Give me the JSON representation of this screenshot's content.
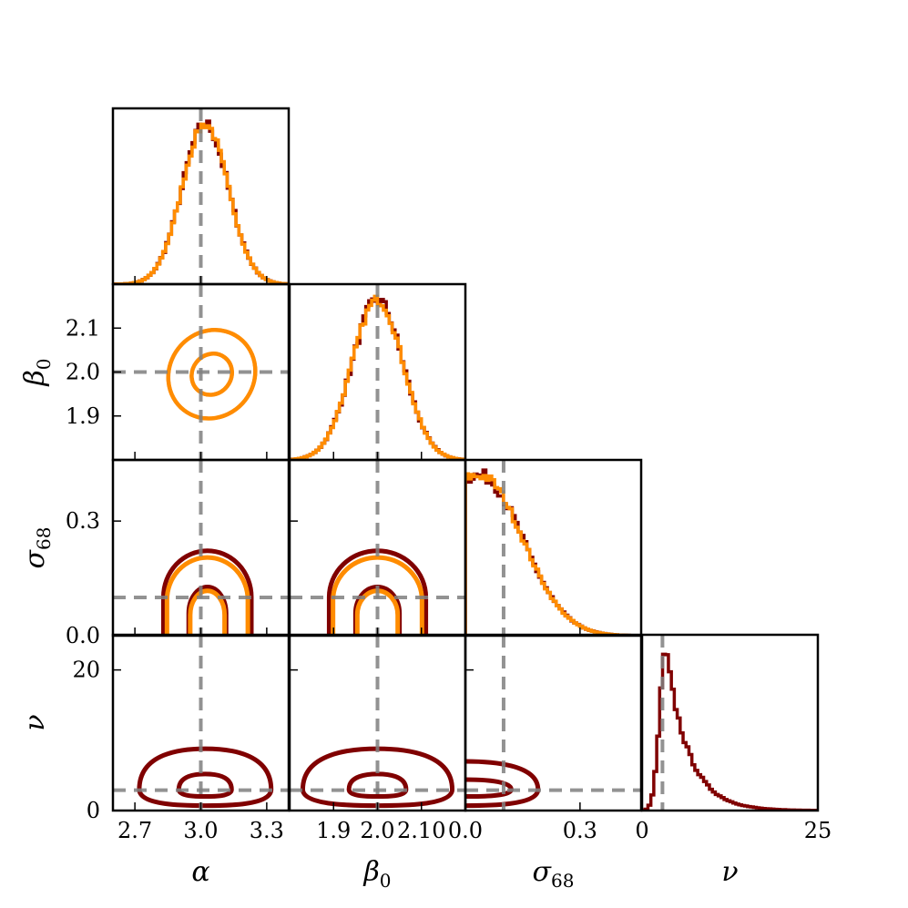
{
  "chart_data": {
    "type": "corner",
    "parameters": [
      {
        "key": "alpha",
        "symbol": "α",
        "sub": "",
        "truth": 3.0,
        "range": [
          2.6,
          3.4
        ],
        "ticks": [
          2.7,
          3.0,
          3.3
        ],
        "tick_labels": [
          "2.7",
          "3.0",
          "3.3"
        ]
      },
      {
        "key": "beta0",
        "symbol": "β",
        "sub": "0",
        "truth": 2.0,
        "range": [
          1.8,
          2.2
        ],
        "ticks": [
          1.9,
          2.0,
          2.1
        ],
        "tick_labels": [
          "1.9",
          "2.0",
          "2.1"
        ],
        "x_tick_labels": [
          "1.9",
          "2.0",
          "2.10"
        ]
      },
      {
        "key": "sigma68",
        "symbol": "σ",
        "sub": "68",
        "truth": 0.1,
        "range": [
          0.0,
          0.46
        ],
        "ticks": [
          0.0,
          0.3
        ],
        "tick_labels": [
          "0.0",
          "0.3"
        ]
      },
      {
        "key": "nu",
        "symbol": "ν",
        "sub": "",
        "truth": 2.9,
        "range": [
          0,
          25
        ],
        "ticks": [
          0,
          20
        ],
        "tick_labels": [
          "0",
          "20"
        ],
        "x_ticks": [
          0,
          25
        ],
        "x_tick_labels": [
          "0",
          "25"
        ]
      }
    ],
    "series": [
      {
        "color": "#800000"
      },
      {
        "color": "#FF8C00"
      }
    ],
    "truth_line_color": "#808080",
    "marginals": {
      "alpha": {
        "type": "gaussian",
        "mean": 3.02,
        "sd": 0.105
      },
      "beta0": {
        "type": "gaussian",
        "mean": 2.0,
        "sd": 0.058
      },
      "sigma68": {
        "type": "halfnormal",
        "peak": 0.04,
        "sd_left": 0.25,
        "sd_right": 0.11
      },
      "nu": {
        "type": "skewed",
        "mode": 3.4,
        "sd_left": 0.9,
        "scale_right": 3.2
      }
    },
    "contours": {
      "alpha_beta0": {
        "center": [
          3.05,
          1.995
        ],
        "angle_deg": -38,
        "outer": {
          "a": 0.26,
          "b": 0.045
        },
        "inner": {
          "a": 0.12,
          "b": 0.021
        }
      },
      "alpha_sigma68": {
        "center": [
          3.03,
          0.0
        ],
        "outer": {
          "rx": 0.2,
          "ry": 0.22
        },
        "inner": {
          "rx": 0.085,
          "ry": 0.125
        }
      },
      "beta0_sigma68": {
        "center": [
          2.0,
          0.0
        ],
        "outer": {
          "rx": 0.11,
          "ry": 0.22
        },
        "inner": {
          "rx": 0.05,
          "ry": 0.125
        }
      },
      "alpha_nu": {
        "center": [
          3.02,
          3.0
        ],
        "outer": {
          "rx": 0.3,
          "up": 5.8,
          "down": 2.3
        },
        "inner": {
          "rx": 0.12,
          "up": 2.2,
          "down": 1.0
        }
      },
      "beta0_nu": {
        "center": [
          2.0,
          3.0
        ],
        "outer": {
          "rx": 0.17,
          "up": 5.8,
          "down": 2.3
        },
        "inner": {
          "rx": 0.065,
          "up": 2.2,
          "down": 1.0
        }
      },
      "sigma68_nu": {
        "center": [
          0.0,
          3.0
        ],
        "outer": {
          "rx": 0.19,
          "up": 4.0,
          "down": 2.3
        },
        "inner": {
          "rx": 0.12,
          "up": 1.4,
          "down": 1.0
        }
      }
    }
  }
}
